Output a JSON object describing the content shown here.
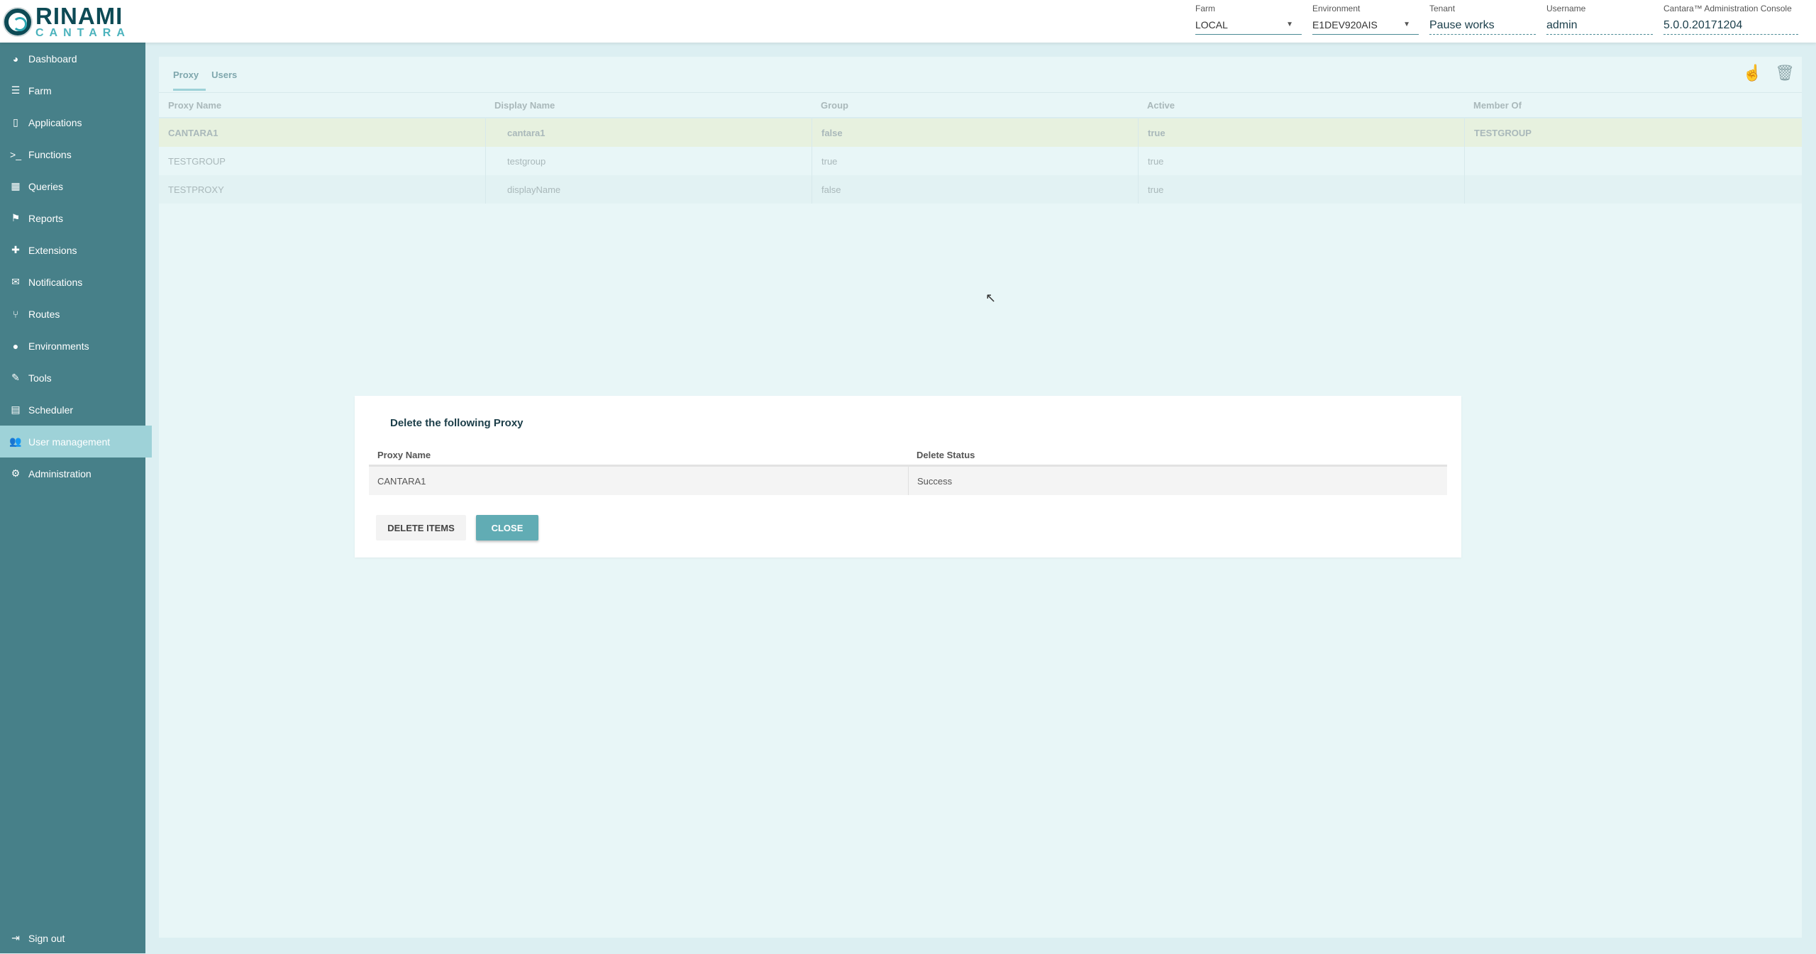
{
  "header": {
    "logo_text": "RINAMI CANTARA",
    "farm": {
      "label": "Farm",
      "value": "LOCAL"
    },
    "environment": {
      "label": "Environment",
      "value": "E1DEV920AIS"
    },
    "tenant": {
      "label": "Tenant",
      "value": "Pause works"
    },
    "username": {
      "label": "Username",
      "value": "admin"
    },
    "console": {
      "label": "Cantara™ Administration Console",
      "value": "5.0.0.20171204"
    }
  },
  "sidebar": {
    "items": [
      {
        "label": "Dashboard",
        "icon": "dashboard-icon"
      },
      {
        "label": "Farm",
        "icon": "server-icon"
      },
      {
        "label": "Applications",
        "icon": "tablet-icon"
      },
      {
        "label": "Functions",
        "icon": "terminal-icon"
      },
      {
        "label": "Queries",
        "icon": "table-icon"
      },
      {
        "label": "Reports",
        "icon": "flag-icon"
      },
      {
        "label": "Extensions",
        "icon": "puzzle-icon"
      },
      {
        "label": "Notifications",
        "icon": "envelope-icon"
      },
      {
        "label": "Routes",
        "icon": "fork-icon"
      },
      {
        "label": "Environments",
        "icon": "globe-icon"
      },
      {
        "label": "Tools",
        "icon": "wrench-icon"
      },
      {
        "label": "Scheduler",
        "icon": "calendar-icon"
      },
      {
        "label": "User management",
        "icon": "users-icon",
        "active": true
      },
      {
        "label": "Administration",
        "icon": "gear-icon"
      }
    ],
    "signout": "Sign out"
  },
  "main": {
    "tabs": [
      {
        "label": "Proxy",
        "active": true
      },
      {
        "label": "Users"
      }
    ],
    "table": {
      "headers": [
        "Proxy Name",
        "Display Name",
        "Group",
        "Active",
        "Member Of"
      ],
      "rows": [
        [
          "CANTARA1",
          "cantara1",
          "false",
          "true",
          "TESTGROUP"
        ],
        [
          "TESTGROUP",
          "testgroup",
          "true",
          "true",
          ""
        ],
        [
          "TESTPROXY",
          "displayName",
          "false",
          "true",
          ""
        ]
      ]
    }
  },
  "dialog": {
    "title": "Delete the following Proxy",
    "headers": [
      "Proxy Name",
      "Delete Status"
    ],
    "rows": [
      [
        "CANTARA1",
        "Success"
      ]
    ],
    "delete_label": "DELETE ITEMS",
    "close_label": "CLOSE"
  }
}
